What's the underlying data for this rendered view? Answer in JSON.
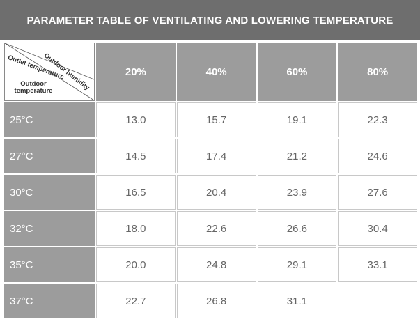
{
  "title": "PARAMETER TABLE OF VENTILATING AND LOWERING TEMPERATURE",
  "corner": {
    "humidity_label": "Outdoor humidity",
    "outlet_label": "Outlet temperature",
    "outdoor_temp_label": "Outdoor temperature"
  },
  "columns": [
    "20%",
    "40%",
    "60%",
    "80%"
  ],
  "rows": [
    {
      "label": "25°C",
      "values": [
        "13.0",
        "15.7",
        "19.1",
        "22.3"
      ]
    },
    {
      "label": "27°C",
      "values": [
        "14.5",
        "17.4",
        "21.2",
        "24.6"
      ]
    },
    {
      "label": "30°C",
      "values": [
        "16.5",
        "20.4",
        "23.9",
        "27.6"
      ]
    },
    {
      "label": "32°C",
      "values": [
        "18.0",
        "22.6",
        "26.6",
        "30.4"
      ]
    },
    {
      "label": "35°C",
      "values": [
        "20.0",
        "24.8",
        "29.1",
        "33.1"
      ]
    },
    {
      "label": "37°C",
      "values": [
        "22.7",
        "26.8",
        "31.1",
        ""
      ]
    }
  ]
}
